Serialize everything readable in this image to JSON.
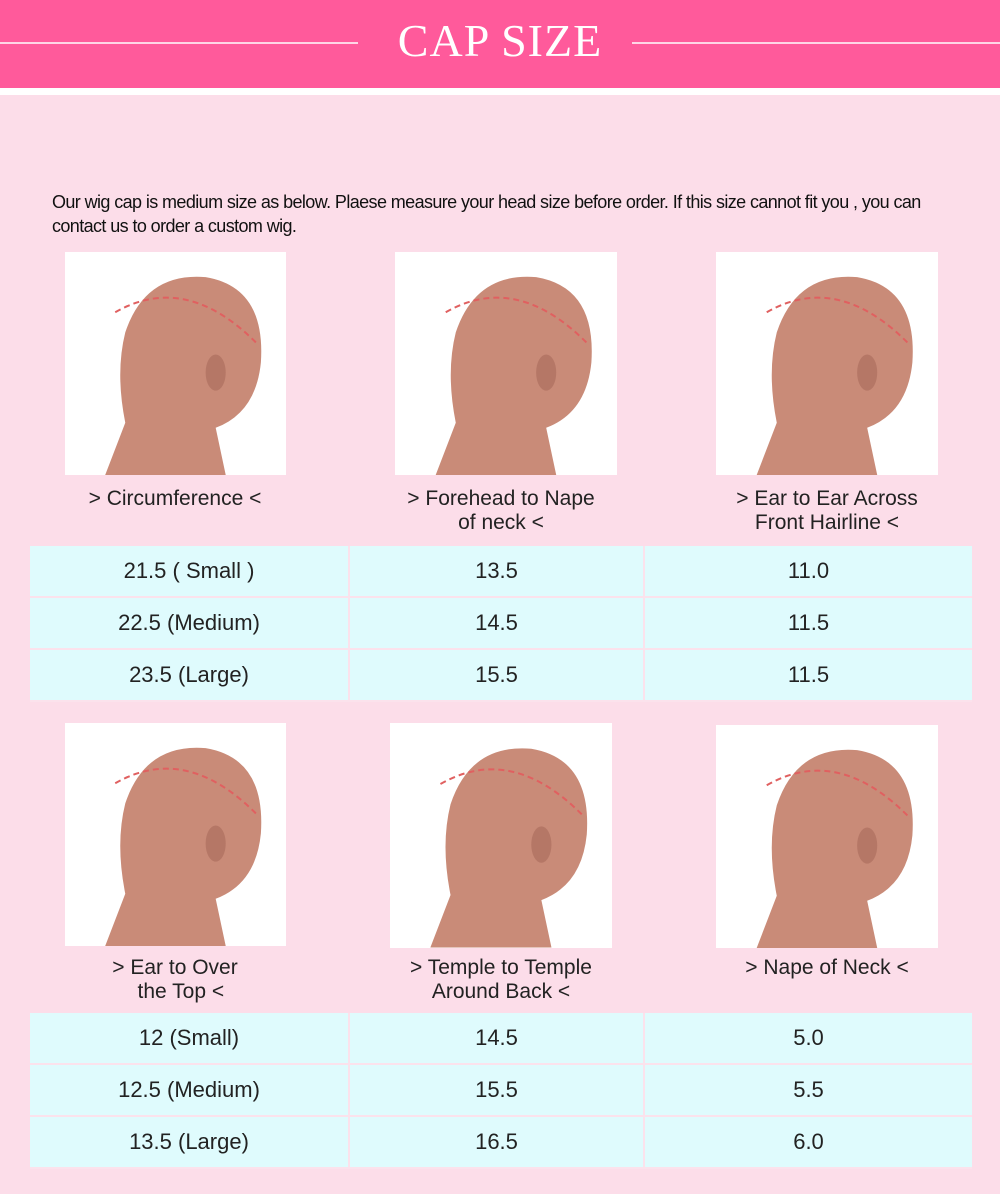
{
  "header": {
    "title": "CAP SIZE",
    "color": "#ff5a9b"
  },
  "intro": "Our wig cap is medium size as below. Plaese measure your head size before order. If this size cannot fit you , you can contact us to order a custom wig.",
  "section1": {
    "captions": [
      "> Circumference <",
      "> Forehead to Nape\nof neck <",
      "> Ear to Ear Across\nFront Hairline <"
    ],
    "rows": [
      [
        "21.5 ( Small )",
        "13.5",
        "11.0"
      ],
      [
        "22.5  (Medium)",
        "14.5",
        "11.5"
      ],
      [
        "23.5 (Large)",
        "15.5",
        "11.5"
      ]
    ]
  },
  "section2": {
    "captions": [
      "> Ear to Over\n  the Top <",
      "> Temple to Temple\nAround Back <",
      "> Nape of Neck <"
    ],
    "rows": [
      [
        "12 (Small)",
        "14.5",
        "5.0"
      ],
      [
        "12.5 (Medium)",
        "15.5",
        "5.5"
      ],
      [
        "13.5 (Large)",
        "16.5",
        "6.0"
      ]
    ]
  }
}
